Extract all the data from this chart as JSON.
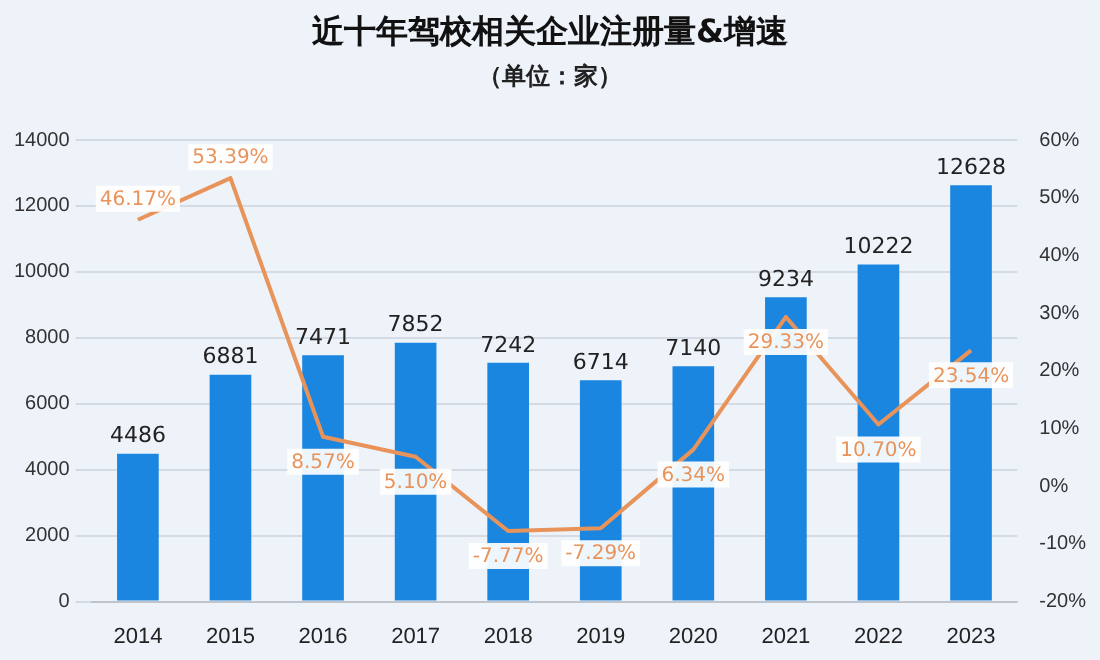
{
  "chart_data": {
    "type": "bar",
    "title": "近十年驾校相关企业注册量&增速",
    "subtitle": "（单位：家）",
    "categories": [
      "2014",
      "2015",
      "2016",
      "2017",
      "2018",
      "2019",
      "2020",
      "2021",
      "2022",
      "2023"
    ],
    "series": [
      {
        "color": "#1a86e0",
        "values": [
          4486,
          6881,
          7471,
          7852,
          7242,
          6714,
          7140,
          9234,
          10222,
          12628
        ],
        "value_labels": [
          "4486",
          "6881",
          "7471",
          "7852",
          "7242",
          "6714",
          "7140",
          "9234",
          "10222",
          "12628"
        ]
      },
      {
        "type": "line",
        "axis": "y2",
        "color": "#e8935a",
        "values": [
          46.17,
          53.39,
          8.57,
          5.1,
          -7.77,
          -7.29,
          6.34,
          29.33,
          10.7,
          23.54
        ],
        "value_labels": [
          "46.17%",
          "53.39%",
          "8.57%",
          "5.10%",
          "-7.77%",
          "-7.29%",
          "6.34%",
          "29.33%",
          "10.70%",
          "23.54%"
        ]
      }
    ],
    "ylim": [
      0,
      14000
    ],
    "yticks": [
      0,
      2000,
      4000,
      6000,
      8000,
      10000,
      12000,
      14000
    ],
    "y2lim": [
      -20,
      60
    ],
    "y2ticks": [
      {
        "value": -20,
        "label": "-20%"
      },
      {
        "value": -10,
        "label": "-10%"
      },
      {
        "value": 0,
        "label": "0%"
      },
      {
        "value": 10,
        "label": "10%"
      },
      {
        "value": 20,
        "label": "20%"
      },
      {
        "value": 30,
        "label": "30%"
      },
      {
        "value": 40,
        "label": "40%"
      },
      {
        "value": 50,
        "label": "50%"
      },
      {
        "value": 60,
        "label": "60%"
      }
    ],
    "grid": "y",
    "legend": false,
    "marker": "none",
    "line_style": "solid"
  }
}
